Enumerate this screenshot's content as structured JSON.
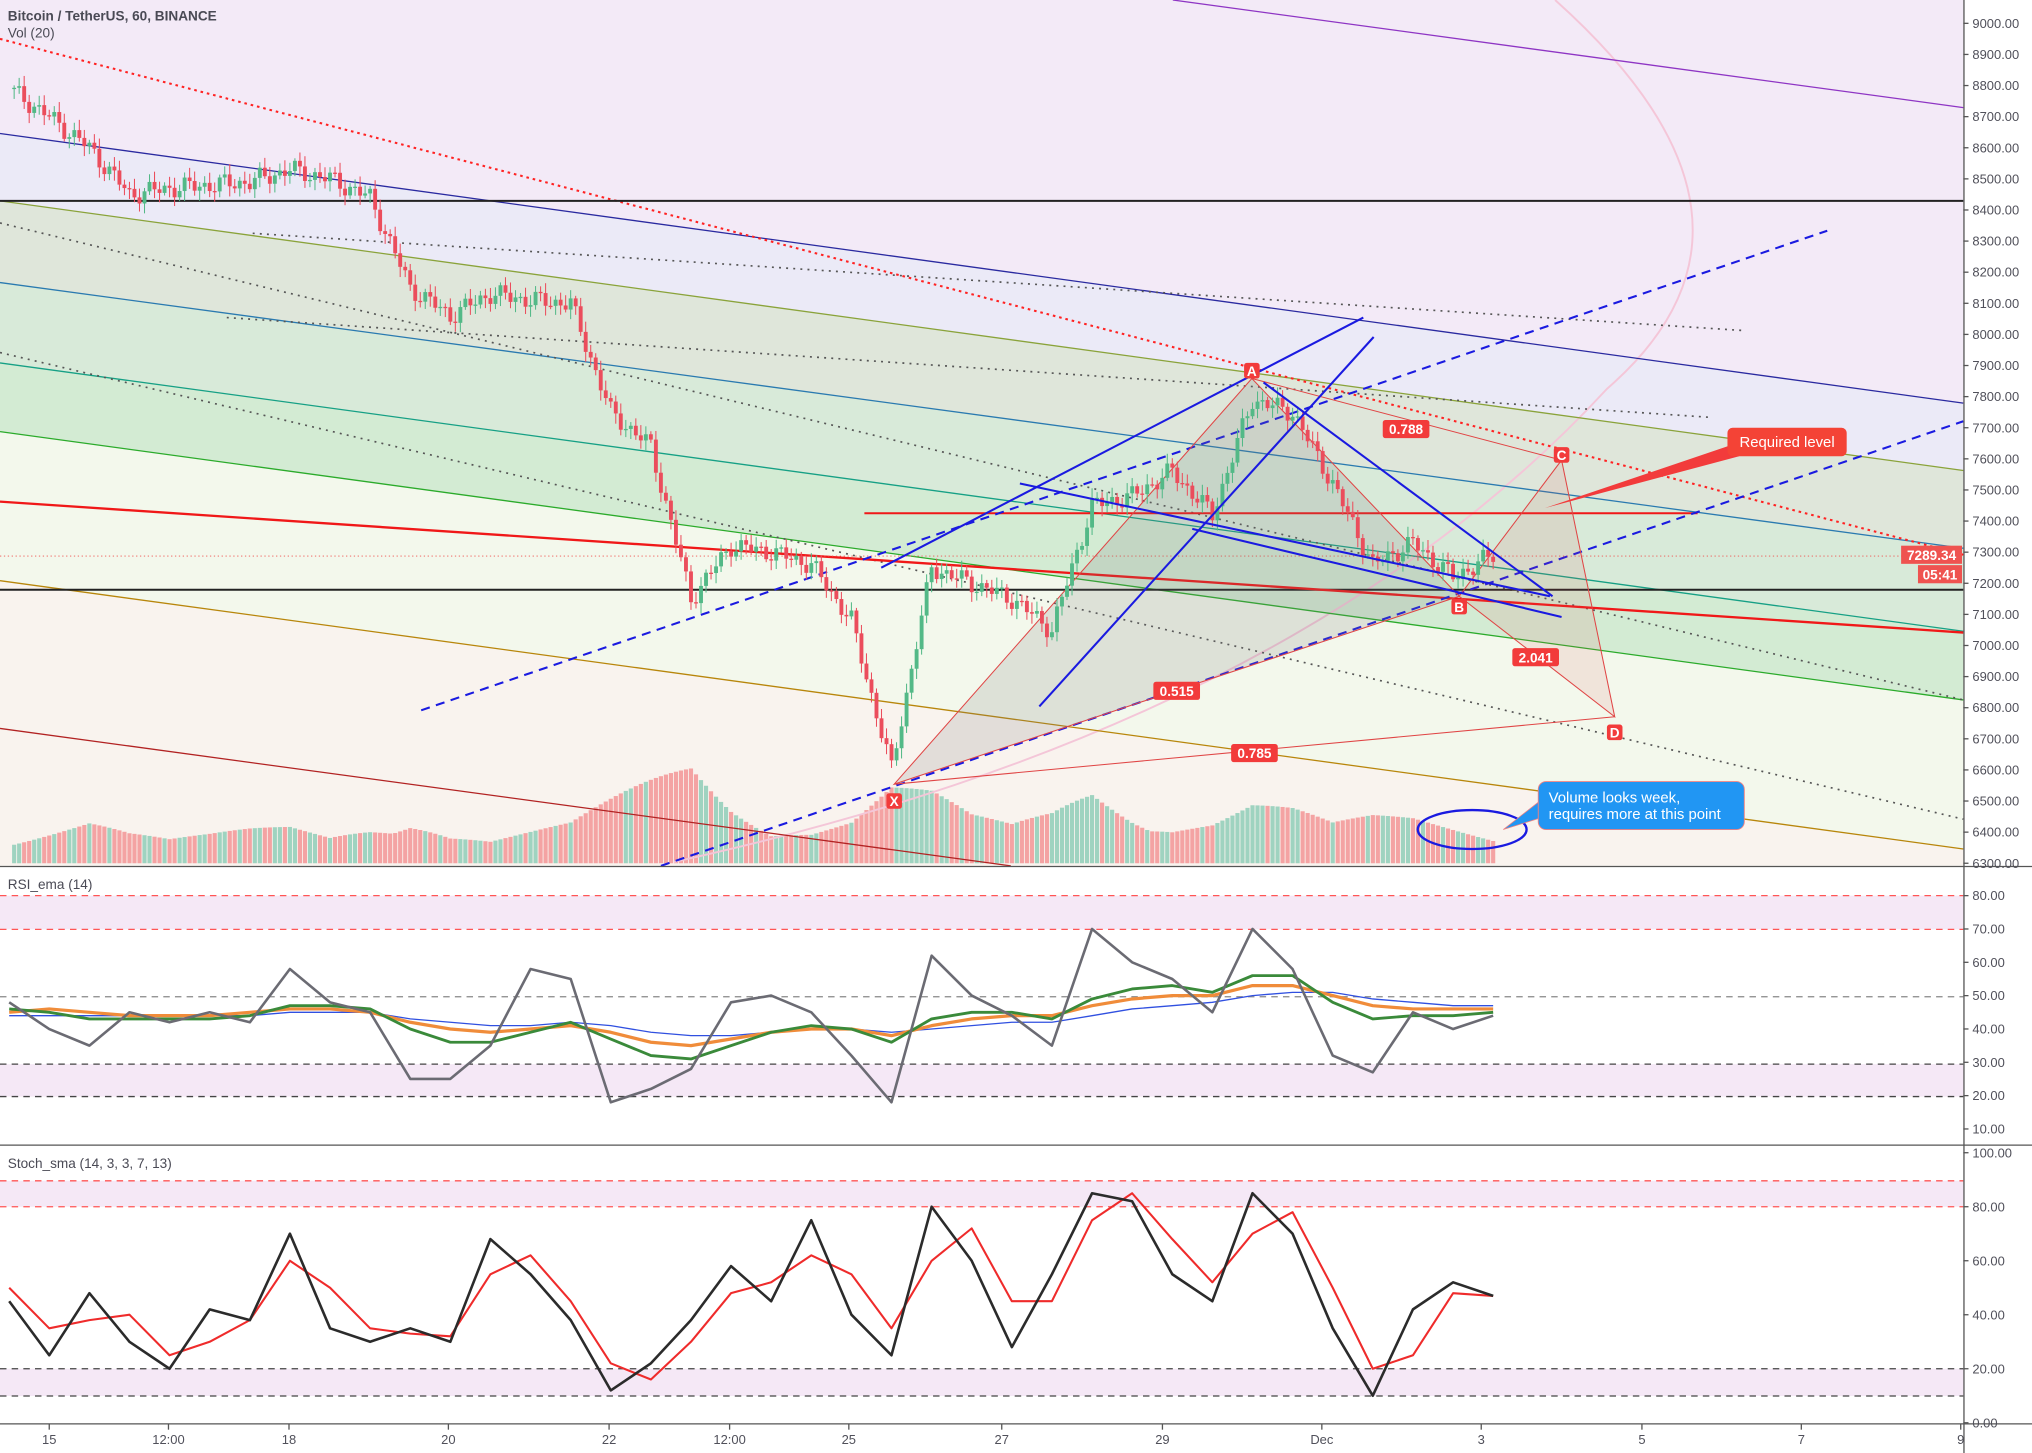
{
  "header": {
    "symbol_title": "Bitcoin / TetherUS, 60, BINANCE",
    "volume_title": "Vol (20)"
  },
  "price_axis": {
    "labels": [
      "9000.00",
      "8900.00",
      "8800.00",
      "8700.00",
      "8600.00",
      "8500.00",
      "8400.00",
      "8300.00",
      "8200.00",
      "8100.00",
      "8000.00",
      "7900.00",
      "7800.00",
      "7700.00",
      "7600.00",
      "7500.00",
      "7400.00",
      "7300.00",
      "7200.00",
      "7100.00",
      "7000.00",
      "6900.00",
      "6800.00",
      "6700.00",
      "6600.00",
      "6500.00",
      "6400.00",
      "6300.00"
    ],
    "last_price": "7289.34",
    "countdown": "05:41"
  },
  "rsi": {
    "title": "RSI_ema (14)",
    "labels": [
      "80.00",
      "70.00",
      "60.00",
      "50.00",
      "40.00",
      "30.00",
      "20.00",
      "10.00"
    ]
  },
  "stoch": {
    "title": "Stoch_sma (14, 3, 3, 7, 13)",
    "labels": [
      "100.00",
      "80.00",
      "60.00",
      "40.00",
      "20.00",
      "0.00"
    ]
  },
  "time_axis": {
    "labels": [
      "15",
      "12:00",
      "18",
      "20",
      "22",
      "12:00",
      "25",
      "27",
      "29",
      "Dec",
      "3",
      "5",
      "7",
      "9"
    ]
  },
  "pattern": {
    "points": {
      "X": "X",
      "A": "A",
      "B": "B",
      "C": "C",
      "D": "D"
    },
    "ratios": {
      "xb": "0.515",
      "ac": "0.788",
      "bd": "2.041",
      "xd": "0.785"
    }
  },
  "annotations": {
    "required_level": "Required level",
    "volume_note_line1": "Volume looks week,",
    "volume_note_line2": "requires more at this point"
  },
  "colors": {
    "up": "#53b987",
    "down": "#eb4d5c",
    "pattern_label": "#f23b3b",
    "callout_blue": "#2196f3",
    "channel_lines": "#1a1aa8"
  },
  "chart_data": {
    "type": "candlestick",
    "title": "Bitcoin / TetherUS, 60, BINANCE",
    "x_start": "Nov 14 12:00",
    "interval_hours": 12,
    "price_range": [
      6300,
      9000
    ],
    "close": [
      8790,
      8700,
      8600,
      8450,
      8470,
      8480,
      8490,
      8530,
      8500,
      8440,
      8150,
      8060,
      8130,
      8110,
      8100,
      7750,
      7640,
      7150,
      7320,
      7300,
      7260,
      7080,
      6600,
      7250,
      7200,
      7150,
      7050,
      7450,
      7480,
      7560,
      7420,
      7790,
      7750,
      7520,
      7260,
      7330,
      7220,
      7289.34
    ],
    "volume_relative": [
      20,
      25,
      30,
      20,
      15,
      18,
      22,
      25,
      20,
      30,
      35,
      20,
      15,
      20,
      25,
      40,
      55,
      70,
      45,
      30,
      25,
      30,
      50,
      45,
      30,
      25,
      35,
      55,
      40,
      30,
      30,
      40,
      35,
      25,
      30,
      30,
      25,
      20
    ],
    "horizontal_levels": [
      8440,
      7420,
      7185
    ],
    "rsi": {
      "range": [
        10,
        80
      ],
      "bands": [
        [
          70,
          80
        ],
        [
          20,
          30
        ]
      ],
      "midline": 50,
      "rsi": [
        48,
        40,
        35,
        45,
        42,
        45,
        42,
        58,
        48,
        45,
        25,
        25,
        35,
        58,
        55,
        18,
        22,
        28,
        48,
        50,
        45,
        32,
        18,
        62,
        50,
        44,
        35,
        70,
        60,
        55,
        45,
        70,
        58,
        32,
        27,
        45,
        40,
        44
      ],
      "ema_orange": [
        45,
        46,
        45,
        44,
        44,
        44,
        45,
        46,
        46,
        45,
        42,
        40,
        39,
        40,
        41,
        39,
        36,
        35,
        37,
        39,
        40,
        40,
        38,
        41,
        43,
        44,
        44,
        47,
        49,
        50,
        50,
        53,
        53,
        50,
        47,
        46,
        46,
        46
      ],
      "ema_green": [
        46,
        45,
        43,
        43,
        43,
        43,
        44,
        47,
        47,
        46,
        40,
        36,
        36,
        39,
        42,
        37,
        32,
        31,
        35,
        39,
        41,
        40,
        36,
        43,
        45,
        45,
        43,
        49,
        52,
        53,
        51,
        56,
        56,
        48,
        43,
        44,
        44,
        45
      ],
      "ema_blue": [
        44,
        44,
        44,
        44,
        44,
        44,
        44,
        45,
        45,
        45,
        43,
        42,
        41,
        41,
        42,
        41,
        39,
        38,
        38,
        39,
        40,
        40,
        39,
        40,
        41,
        42,
        42,
        44,
        46,
        47,
        48,
        50,
        51,
        51,
        49,
        48,
        47,
        47
      ]
    },
    "stoch": {
      "range": [
        0,
        100
      ],
      "bands": [
        [
          80,
          90
        ],
        [
          10,
          20
        ]
      ],
      "k": [
        45,
        25,
        48,
        30,
        20,
        42,
        38,
        70,
        35,
        30,
        35,
        30,
        68,
        55,
        38,
        12,
        22,
        38,
        58,
        45,
        75,
        40,
        25,
        80,
        60,
        28,
        55,
        85,
        82,
        55,
        45,
        85,
        70,
        35,
        10,
        42,
        52,
        47
      ],
      "d": [
        50,
        35,
        38,
        40,
        25,
        30,
        38,
        60,
        50,
        35,
        33,
        32,
        55,
        62,
        45,
        22,
        16,
        30,
        48,
        52,
        62,
        55,
        35,
        60,
        72,
        45,
        45,
        75,
        85,
        68,
        52,
        70,
        78,
        50,
        20,
        25,
        48,
        47
      ]
    }
  }
}
